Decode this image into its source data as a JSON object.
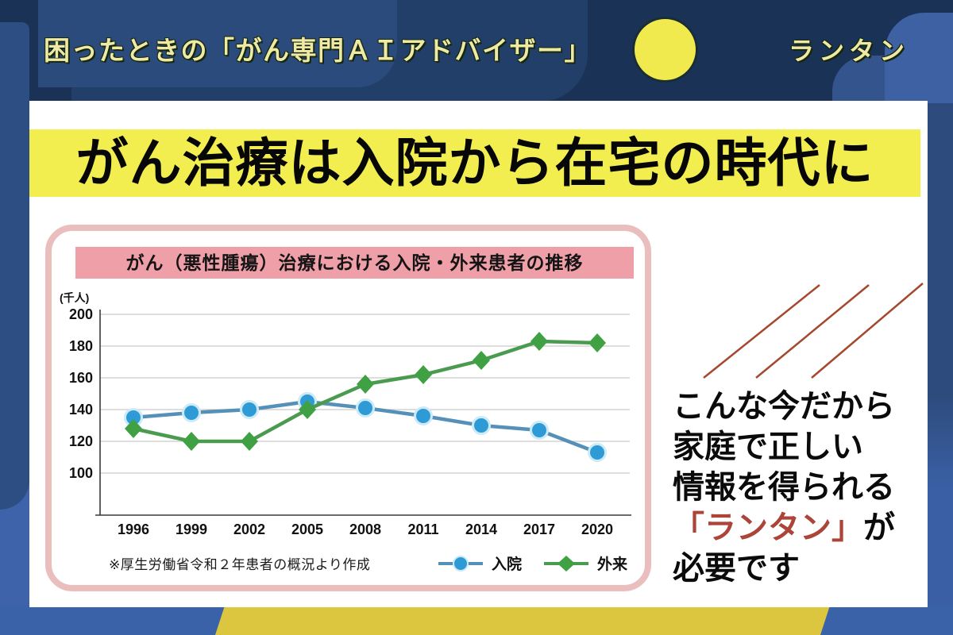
{
  "header": {
    "title": "困ったときの「がん専門ＡＩアドバイザー」",
    "brand": "ランタン"
  },
  "headline": "がん治療は入院から在宅の時代に",
  "message": {
    "line1": "こんな今だから",
    "line2": "家庭で正しい",
    "line3": "情報を得られる",
    "brand": "「ランタン」",
    "line4_suffix": "が",
    "line5": "必要です"
  },
  "colors": {
    "navy": "#1B3257",
    "blob_blue": "#2A4B7C",
    "blob_blue_dark": "#223F69",
    "strip_blue": "#2D4E82",
    "right_blue": "#3E61A3",
    "right_blue_dark": "#33548D",
    "band_blue": "#3A62A8",
    "band_blue_light": "#3E63AA",
    "gold": "#DCC63F",
    "moon": "#F0EA4E",
    "pale_yellow": "#EFE9A6",
    "headline_band": "#F2EE4F",
    "panel_border": "#EBBEBE",
    "panel_title_bg": "#EF9FA8",
    "brand_red": "#AC4438",
    "line_red": "#A4482E"
  },
  "chart_data": {
    "type": "line",
    "title": "がん（悪性腫瘍）治療における入院・外来患者の推移",
    "unit_label": "(千人)",
    "source_note": "※厚生労働省令和２年患者の概況より作成",
    "categories": [
      "1996",
      "1999",
      "2002",
      "2005",
      "2008",
      "2011",
      "2014",
      "2017",
      "2020"
    ],
    "series": [
      {
        "name": "入院",
        "marker": "circle",
        "color": "#2E9BD6",
        "line_color": "#5590B8",
        "halo": "#CDEAF7",
        "values": [
          135,
          138,
          140,
          145,
          141,
          136,
          130,
          127,
          113
        ]
      },
      {
        "name": "外来",
        "marker": "diamond",
        "color": "#3FA044",
        "line_color": "#4A9B4F",
        "values": [
          128,
          120,
          120,
          140,
          156,
          162,
          171,
          183,
          182
        ]
      }
    ],
    "ylim": [
      100,
      200
    ],
    "yticks": [
      100,
      120,
      140,
      160,
      180,
      200
    ],
    "grid": true,
    "legend_position": "bottom-right"
  }
}
